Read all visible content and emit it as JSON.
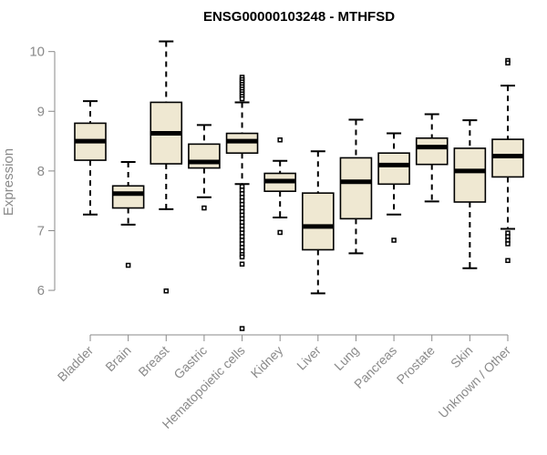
{
  "chart_data": {
    "type": "boxplot",
    "title": "ENSG00000103248 - MTHFSD",
    "xlabel": "",
    "ylabel": "Expression",
    "ylim": [
      5.3,
      10.3
    ],
    "yticks": [
      6,
      7,
      8,
      9,
      10
    ],
    "grid": false,
    "box_color": "#efe8d2",
    "categories": [
      "Bladder",
      "Brain",
      "Breast",
      "Gastric",
      "Hematopoietic cells",
      "Kidney",
      "Liver",
      "Lung",
      "Pancreas",
      "Prostate",
      "Skin",
      "Unknown / Other"
    ],
    "boxes": [
      {
        "name": "Bladder",
        "whisker_low": 7.27,
        "q1": 8.18,
        "median": 8.5,
        "q3": 8.8,
        "whisker_high": 9.17,
        "outliers": []
      },
      {
        "name": "Brain",
        "whisker_low": 7.1,
        "q1": 7.38,
        "median": 7.62,
        "q3": 7.75,
        "whisker_high": 8.15,
        "outliers": [
          6.42
        ]
      },
      {
        "name": "Breast",
        "whisker_low": 7.36,
        "q1": 8.12,
        "median": 8.63,
        "q3": 9.15,
        "whisker_high": 10.17,
        "outliers": [
          5.99
        ]
      },
      {
        "name": "Gastric",
        "whisker_low": 7.56,
        "q1": 8.05,
        "median": 8.15,
        "q3": 8.45,
        "whisker_high": 8.77,
        "outliers": [
          7.38
        ]
      },
      {
        "name": "Hematopoietic cells",
        "whisker_low": 7.78,
        "q1": 8.3,
        "median": 8.5,
        "q3": 8.63,
        "whisker_high": 9.15,
        "outliers": [
          9.57,
          9.53,
          9.49,
          9.45,
          9.41,
          9.37,
          9.33,
          9.29,
          9.25,
          9.21,
          7.74,
          7.68,
          7.62,
          7.56,
          7.5,
          7.44,
          7.38,
          7.32,
          7.26,
          7.2,
          7.14,
          7.08,
          7.02,
          6.96,
          6.9,
          6.84,
          6.78,
          6.72,
          6.66,
          6.6,
          6.56,
          6.44,
          5.36
        ]
      },
      {
        "name": "Kidney",
        "whisker_low": 7.22,
        "q1": 7.66,
        "median": 7.83,
        "q3": 7.96,
        "whisker_high": 8.17,
        "outliers": [
          8.52,
          6.97
        ]
      },
      {
        "name": "Liver",
        "whisker_low": 5.95,
        "q1": 6.68,
        "median": 7.07,
        "q3": 7.63,
        "whisker_high": 8.33,
        "outliers": []
      },
      {
        "name": "Lung",
        "whisker_low": 6.62,
        "q1": 7.2,
        "median": 7.82,
        "q3": 8.22,
        "whisker_high": 8.86,
        "outliers": []
      },
      {
        "name": "Pancreas",
        "whisker_low": 7.27,
        "q1": 7.78,
        "median": 8.1,
        "q3": 8.3,
        "whisker_high": 8.63,
        "outliers": [
          6.84
        ]
      },
      {
        "name": "Prostate",
        "whisker_low": 7.49,
        "q1": 8.11,
        "median": 8.4,
        "q3": 8.55,
        "whisker_high": 8.95,
        "outliers": []
      },
      {
        "name": "Skin",
        "whisker_low": 6.37,
        "q1": 7.48,
        "median": 8.0,
        "q3": 8.38,
        "whisker_high": 8.85,
        "outliers": []
      },
      {
        "name": "Unknown / Other",
        "whisker_low": 7.03,
        "q1": 7.9,
        "median": 8.25,
        "q3": 8.53,
        "whisker_high": 9.43,
        "outliers": [
          9.85,
          9.81,
          6.96,
          6.9,
          6.84,
          6.78,
          6.5
        ]
      }
    ]
  }
}
